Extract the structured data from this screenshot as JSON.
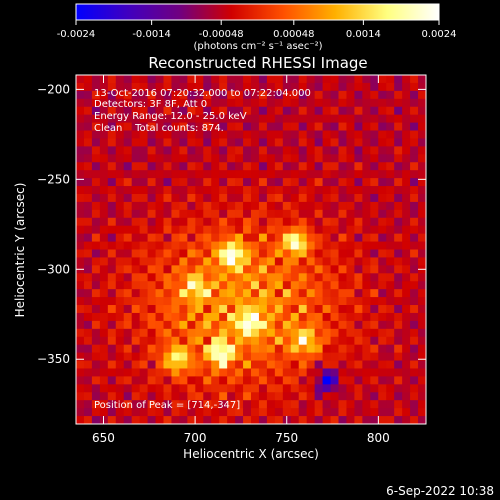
{
  "colorbar": {
    "tick_labels": [
      "-0.0024",
      "-0.0014",
      "-0.00048",
      "0.00048",
      "0.0014",
      "0.0024"
    ],
    "tick_values": [
      -0.0024,
      -0.0014,
      -0.00048,
      0.00048,
      0.0014,
      0.0024
    ],
    "range": [
      -0.0024,
      0.0024
    ],
    "units_label": "(photons cm⁻² s⁻¹ asec⁻²)",
    "colors": [
      "#0000ff",
      "#4000c0",
      "#700080",
      "#d00000",
      "#ff5000",
      "#ffb000",
      "#ffff80",
      "#ffffff"
    ]
  },
  "chart_data": {
    "type": "heatmap",
    "title": "Reconstructed RHESSI Image",
    "xlabel": "Heliocentric X (arcsec)",
    "ylabel": "Heliocentric Y (arcsec)",
    "xlim": [
      635,
      826
    ],
    "ylim": [
      -386,
      -192
    ],
    "x_ticks": [
      650,
      700,
      750,
      800
    ],
    "y_ticks": [
      -200,
      -250,
      -300,
      -350
    ],
    "x_tick_labels": [
      "650",
      "700",
      "750",
      "800"
    ],
    "y_tick_labels": [
      "−200",
      "−250",
      "−300",
      "−350"
    ],
    "annotations": {
      "line1": "13-Oct-2016 07:20:32.000 to 07:22:04.000",
      "line2": "Detectors: 3F 8F, Att 0",
      "line3": "Energy Range: 12.0 - 25.0 keV",
      "line4": "Clean    Total counts: 874.",
      "peak": "Position of Peak = [714,-347]"
    },
    "peak_position": [
      714,
      -347
    ],
    "bright_sources": [
      {
        "x": 720,
        "y": -292,
        "intensity": 1.0
      },
      {
        "x": 755,
        "y": -285,
        "intensity": 0.95
      },
      {
        "x": 730,
        "y": -330,
        "intensity": 0.85
      },
      {
        "x": 714,
        "y": -347,
        "intensity": 1.0
      },
      {
        "x": 690,
        "y": -350,
        "intensity": 0.8
      },
      {
        "x": 760,
        "y": -340,
        "intensity": 0.7
      },
      {
        "x": 700,
        "y": -310,
        "intensity": 0.6
      }
    ],
    "dark_sources": [
      {
        "x": 772,
        "y": -362,
        "intensity": 0.9
      }
    ]
  },
  "footer": {
    "date": "6-Sep-2022 10:38"
  }
}
